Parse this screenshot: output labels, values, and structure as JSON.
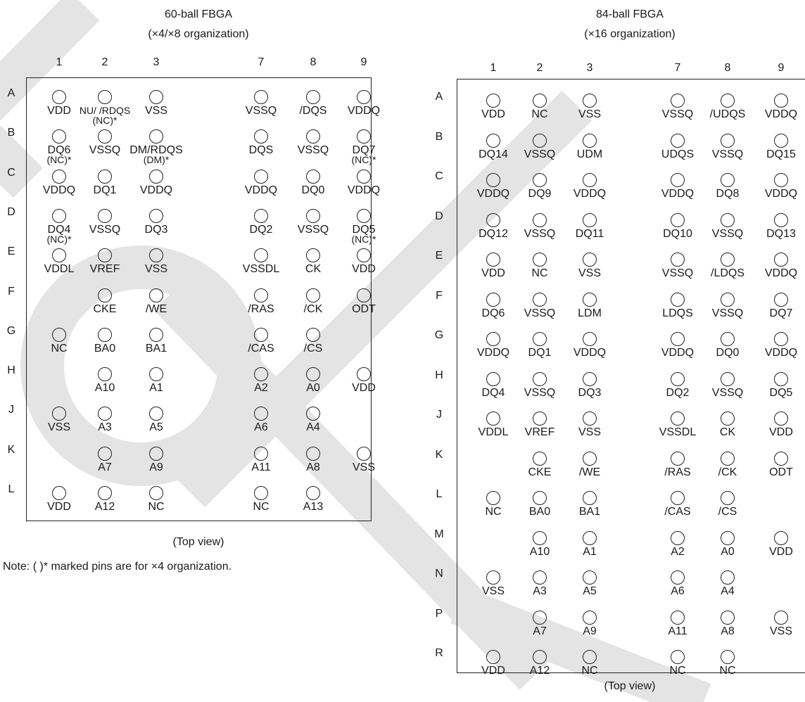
{
  "watermark_color": "#e4e4e4",
  "left": {
    "title": "60-ball FBGA",
    "subtitle": "(×4/×8 organization)",
    "columns": [
      "1",
      "2",
      "3",
      "7",
      "8",
      "9"
    ],
    "rows": [
      "A",
      "B",
      "C",
      "D",
      "E",
      "F",
      "G",
      "H",
      "J",
      "K",
      "L"
    ],
    "pins": [
      [
        "VDD",
        "NU/ /RDQS",
        "VSS",
        "VSSQ",
        "/DQS",
        "VDDQ"
      ],
      [
        "DQ6",
        "VSSQ",
        "DM/RDQS",
        "DQS",
        "VSSQ",
        "DQ7"
      ],
      [
        "VDDQ",
        "DQ1",
        "VDDQ",
        "VDDQ",
        "DQ0",
        "VDDQ"
      ],
      [
        "DQ4",
        "VSSQ",
        "DQ3",
        "DQ2",
        "VSSQ",
        "DQ5"
      ],
      [
        "VDDL",
        "VREF",
        "VSS",
        "VSSDL",
        "CK",
        "VDD"
      ],
      [
        "",
        "CKE",
        "/WE",
        "/RAS",
        "/CK",
        "ODT"
      ],
      [
        "NC",
        "BA0",
        "BA1",
        "/CAS",
        "/CS",
        ""
      ],
      [
        "",
        "A10",
        "A1",
        "A2",
        "A0",
        "VDD"
      ],
      [
        "VSS",
        "A3",
        "A5",
        "A6",
        "A4",
        ""
      ],
      [
        "",
        "A7",
        "A9",
        "A11",
        "A8",
        "VSS"
      ],
      [
        "VDD",
        "A12",
        "NC",
        "NC",
        "A13",
        ""
      ]
    ],
    "alt_marks": [
      {
        "row": 0,
        "col": 1,
        "text": "(NC)*"
      },
      {
        "row": 1,
        "col": 0,
        "text": "(NC)*"
      },
      {
        "row": 1,
        "col": 2,
        "text": "(DM)*"
      },
      {
        "row": 1,
        "col": 5,
        "text": "(NC)*"
      },
      {
        "row": 3,
        "col": 0,
        "text": "(NC)*"
      },
      {
        "row": 3,
        "col": 5,
        "text": "(NC)*"
      }
    ],
    "view_label": "(Top view)",
    "note": "Note:  (  )* marked pins are for ×4 organization."
  },
  "right": {
    "title": "84-ball FBGA",
    "subtitle": "(×16 organization)",
    "columns": [
      "1",
      "2",
      "3",
      "7",
      "8",
      "9"
    ],
    "rows": [
      "A",
      "B",
      "C",
      "D",
      "E",
      "F",
      "G",
      "H",
      "J",
      "K",
      "L",
      "M",
      "N",
      "P",
      "R"
    ],
    "pins": [
      [
        "VDD",
        "NC",
        "VSS",
        "VSSQ",
        "/UDQS",
        "VDDQ"
      ],
      [
        "DQ14",
        "VSSQ",
        "UDM",
        "UDQS",
        "VSSQ",
        "DQ15"
      ],
      [
        "VDDQ",
        "DQ9",
        "VDDQ",
        "VDDQ",
        "DQ8",
        "VDDQ"
      ],
      [
        "DQ12",
        "VSSQ",
        "DQ11",
        "DQ10",
        "VSSQ",
        "DQ13"
      ],
      [
        "VDD",
        "NC",
        "VSS",
        "VSSQ",
        "/LDQS",
        "VDDQ"
      ],
      [
        "DQ6",
        "VSSQ",
        "LDM",
        "LDQS",
        "VSSQ",
        "DQ7"
      ],
      [
        "VDDQ",
        "DQ1",
        "VDDQ",
        "VDDQ",
        "DQ0",
        "VDDQ"
      ],
      [
        "DQ4",
        "VSSQ",
        "DQ3",
        "DQ2",
        "VSSQ",
        "DQ5"
      ],
      [
        "VDDL",
        "VREF",
        "VSS",
        "VSSDL",
        "CK",
        "VDD"
      ],
      [
        "",
        "CKE",
        "/WE",
        "/RAS",
        "/CK",
        "ODT"
      ],
      [
        "NC",
        "BA0",
        "BA1",
        "/CAS",
        "/CS",
        ""
      ],
      [
        "",
        "A10",
        "A1",
        "A2",
        "A0",
        "VDD"
      ],
      [
        "VSS",
        "A3",
        "A5",
        "A6",
        "A4",
        ""
      ],
      [
        "",
        "A7",
        "A9",
        "A11",
        "A8",
        "VSS"
      ],
      [
        "VDD",
        "A12",
        "NC",
        "NC",
        "NC",
        ""
      ]
    ],
    "view_label": "(Top view)"
  }
}
